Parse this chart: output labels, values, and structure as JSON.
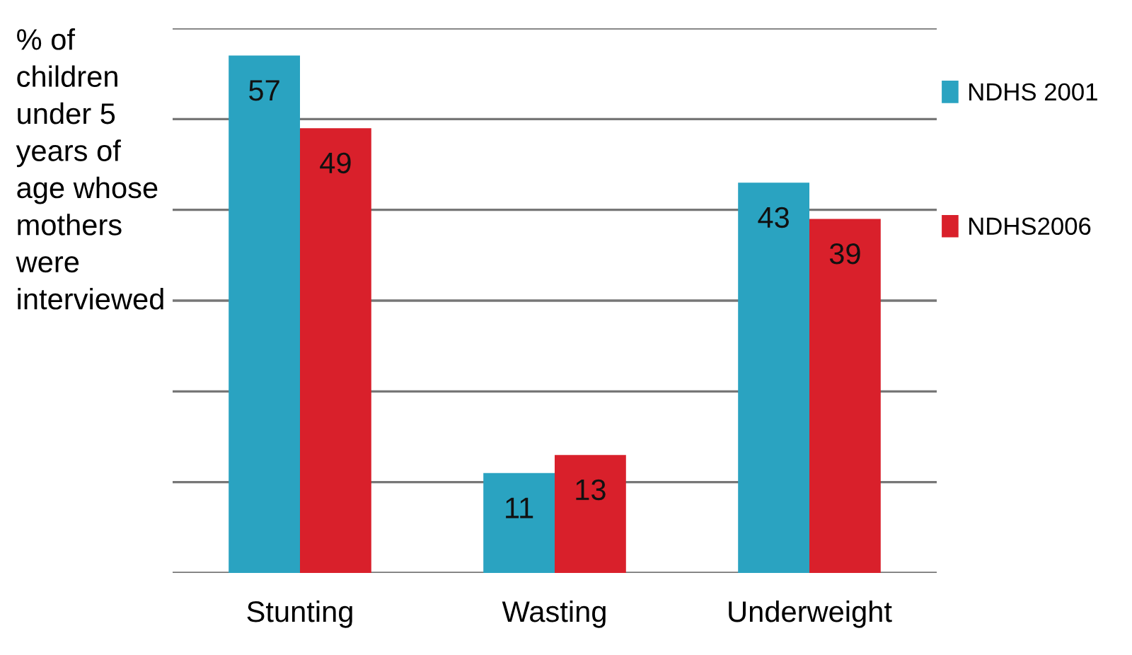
{
  "chart_data": {
    "type": "bar",
    "ylabel": "% of\nchildren\nunder 5\nyears of\nage whose\nmothers\nwere\ninterviewed",
    "categories": [
      "Stunting",
      "Wasting",
      "Underweight"
    ],
    "series": [
      {
        "name": "NDHS 2001",
        "color": "#2aa3c1",
        "values": [
          57,
          11,
          43
        ]
      },
      {
        "name": "NDHS2006",
        "color": "#d9202b",
        "values": [
          49,
          13,
          39
        ]
      }
    ],
    "ylim": [
      0,
      60
    ],
    "yticks": [
      {
        "value": 0,
        "label": null
      },
      {
        "value": 10,
        "label": null
      },
      {
        "value": 20,
        "label": null
      },
      {
        "value": 30,
        "label": null
      },
      {
        "value": 40,
        "label": null
      },
      {
        "value": 50,
        "label": null
      },
      {
        "value": 60,
        "label": null
      }
    ],
    "grid": "y",
    "legend": "right",
    "data_labels": true,
    "tick_labels": "x"
  }
}
